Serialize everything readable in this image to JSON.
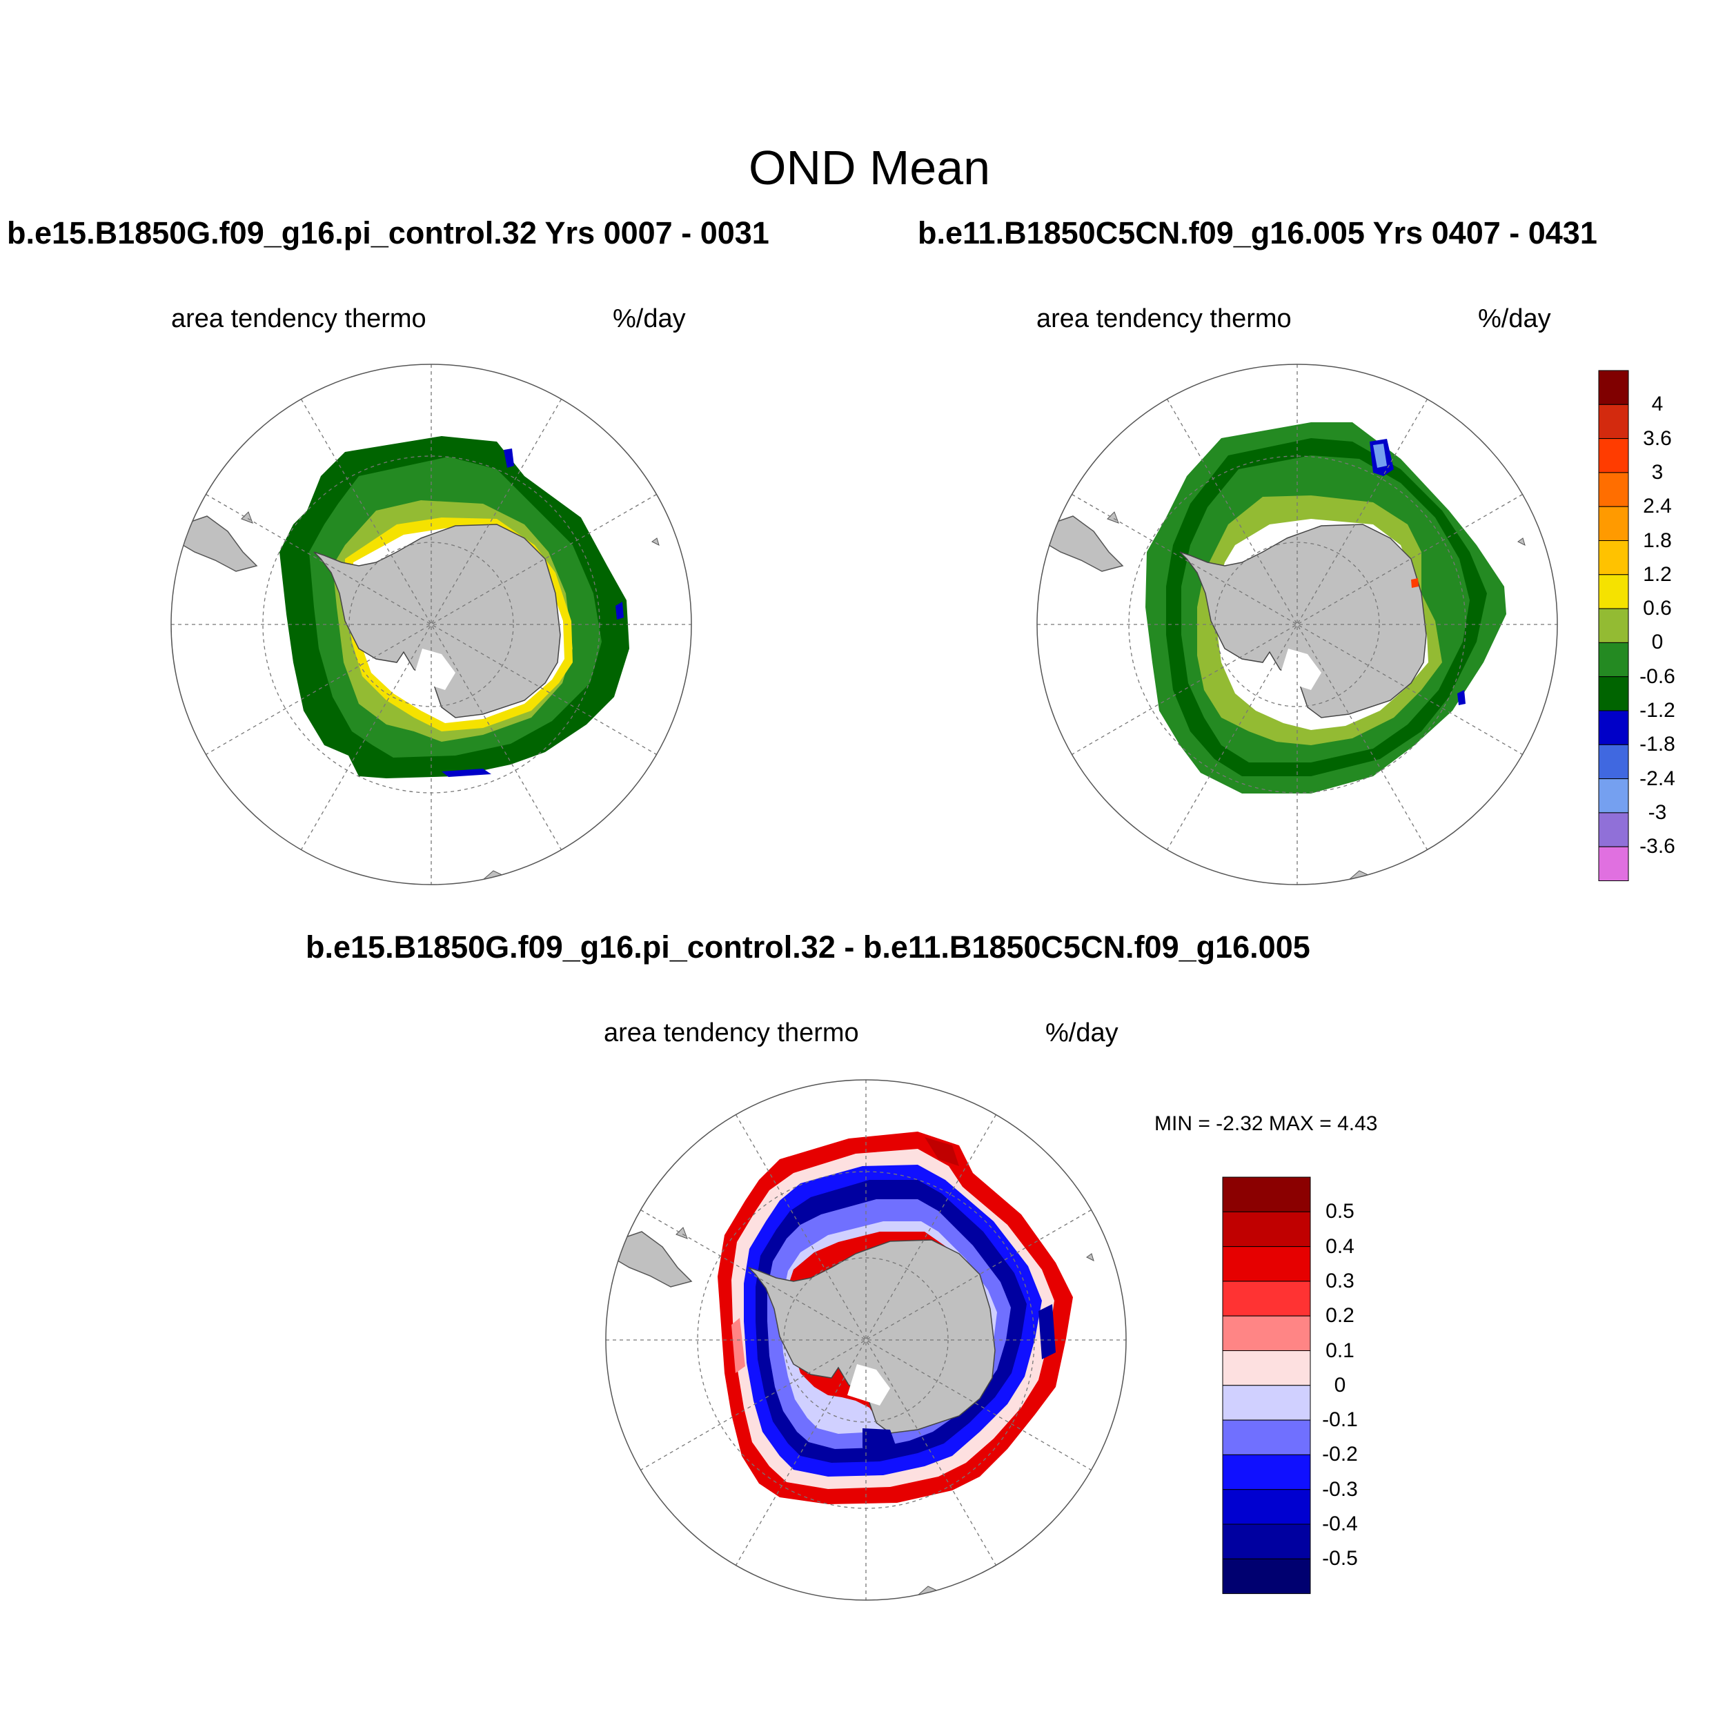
{
  "figure": {
    "title": "OND Mean"
  },
  "panels": [
    {
      "case_label": "b.e15.B1850G.f09_g16.pi_control.32  Yrs 0007 - 0031",
      "variable_label": "area tendency thermo",
      "units_label": "%/day"
    },
    {
      "case_label": "b.e11.B1850C5CN.f09_g16.005  Yrs 0407 - 0431",
      "variable_label": "area tendency thermo",
      "units_label": "%/day"
    },
    {
      "case_label": "b.e15.B1850G.f09_g16.pi_control.32 - b.e11.B1850C5CN.f09_g16.005",
      "variable_label": "area tendency thermo",
      "units_label": "%/day",
      "min_label": "MIN =  -2.32 MAX =   4.43"
    }
  ],
  "colorbars": {
    "fields": {
      "ticks": [
        "4",
        "3.6",
        "3",
        "2.4",
        "1.8",
        "1.2",
        "0.6",
        "0",
        "-0.6",
        "-1.2",
        "-1.8",
        "-2.4",
        "-3",
        "-3.6"
      ],
      "colors": [
        "#800000",
        "#d32a0e",
        "#ff3c00",
        "#ff6e00",
        "#ff9a00",
        "#ffc200",
        "#f5e200",
        "#93bb33",
        "#248a22",
        "#006400",
        "#0000c8",
        "#4068e0",
        "#75a0f0",
        "#9070d8",
        "#e070e0"
      ]
    },
    "difference": {
      "ticks": [
        "0.5",
        "0.4",
        "0.3",
        "0.2",
        "0.1",
        "0",
        "-0.1",
        "-0.2",
        "-0.3",
        "-0.4",
        "-0.5"
      ],
      "colors": [
        "#8b0000",
        "#c00000",
        "#e60000",
        "#ff3333",
        "#ff8585",
        "#fde0e0",
        "#d0d0ff",
        "#7070ff",
        "#1010ff",
        "#0000d0",
        "#0000a0",
        "#000070"
      ]
    }
  }
}
